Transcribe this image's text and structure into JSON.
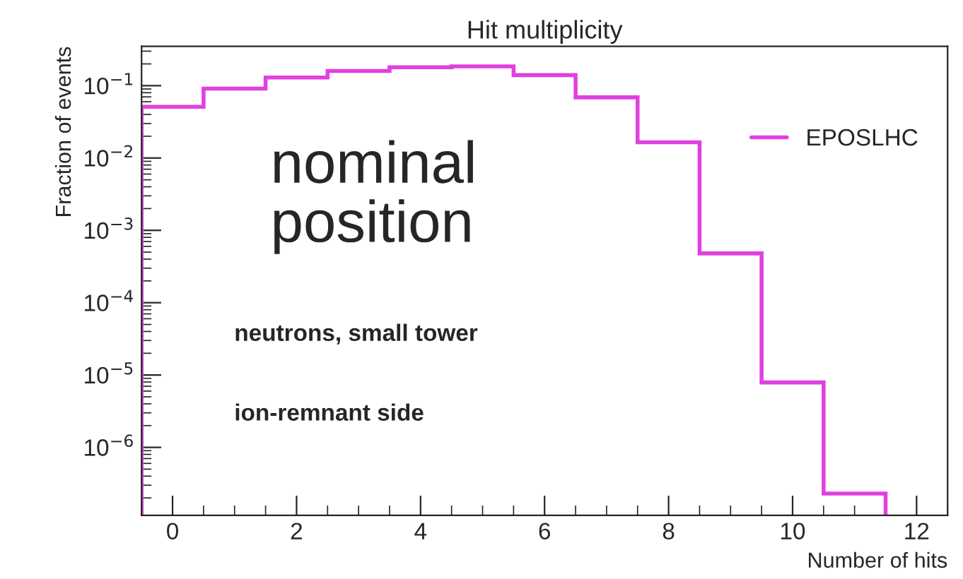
{
  "chart_data": {
    "type": "histogram",
    "title": "Hit multiplicity",
    "xlabel": "Number of hits",
    "ylabel": "Fraction of events",
    "bins": [
      -0.5,
      0.5,
      1.5,
      2.5,
      3.5,
      4.5,
      5.5,
      6.5,
      7.5,
      8.5,
      9.5,
      10.5,
      11.5
    ],
    "series": [
      {
        "name": "EPOSLHC",
        "color": "#e040e0",
        "values": [
          0.051,
          0.091,
          0.13,
          0.16,
          0.18,
          0.185,
          0.14,
          0.069,
          0.0165,
          0.00048,
          7.9e-06,
          2.3e-07
        ]
      }
    ],
    "log": "y",
    "xlim": [
      -0.5,
      12.5
    ],
    "ylim": [
      1.15e-07,
      0.35
    ],
    "xticks": [
      0,
      2,
      4,
      6,
      8,
      10,
      12
    ],
    "yticks": [
      {
        "value": 1e-06,
        "label": "10$^{−6}$"
      },
      {
        "value": 1e-05,
        "label": "10$^{−5}$"
      },
      {
        "value": 0.0001,
        "label": "10$^{−4}$"
      },
      {
        "value": 0.001,
        "label": "10$^{−3}$"
      },
      {
        "value": 0.01,
        "label": "10$^{−2}$"
      },
      {
        "value": 0.1,
        "label": "10$^{−1}$"
      }
    ],
    "annotations": [
      "nominal\nposition",
      "neutrons, small tower",
      "ion-remnant side"
    ],
    "legend": "top right",
    "grid": false
  }
}
